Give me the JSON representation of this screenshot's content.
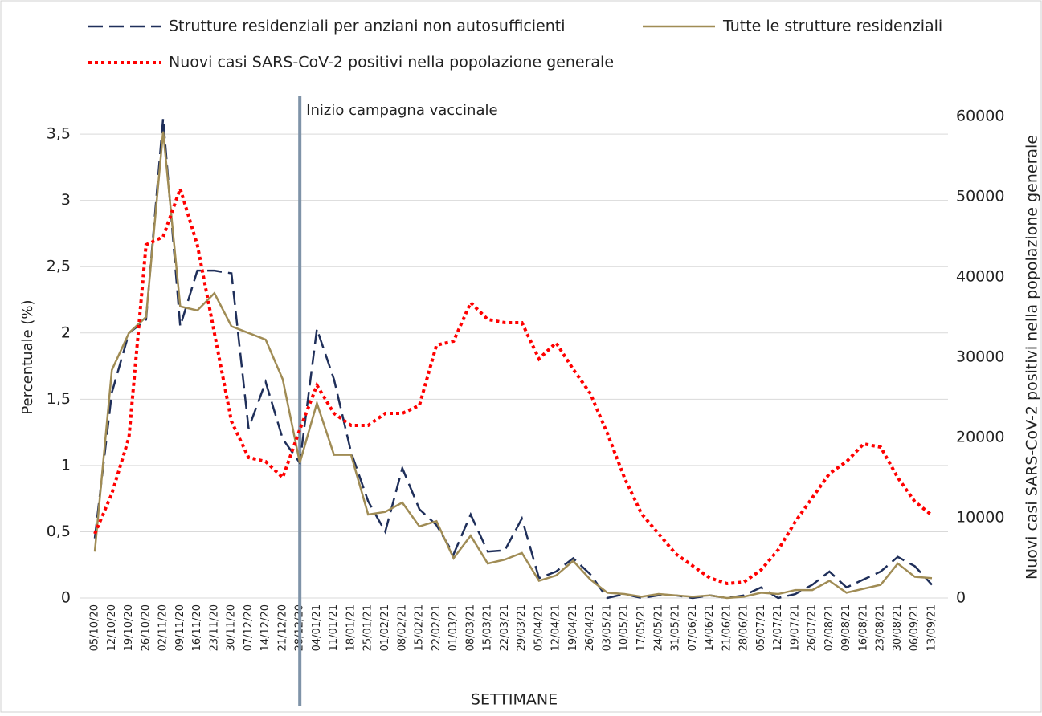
{
  "chart_data": {
    "type": "line",
    "x_label": "SETTIMANE",
    "y_label": "Percentuale (%)",
    "y2_label": "Nuovi casi SARS-CoV-2 positivi nella popolazione generale",
    "annotation": {
      "text": "Inizio campagna vaccinale",
      "category_index": 12
    },
    "categories": [
      "05/10/20",
      "12/10/20",
      "19/10/20",
      "26/10/20",
      "02/11/20",
      "09/11/20",
      "16/11/20",
      "23/11/20",
      "30/11/20",
      "07/12/20",
      "14/12/20",
      "21/12/20",
      "28/12/20",
      "04/01/21",
      "11/01/21",
      "18/01/21",
      "25/01/21",
      "01/02/21",
      "08/02/21",
      "15/02/21",
      "22/02/21",
      "01/03/21",
      "08/03/21",
      "15/03/21",
      "22/03/21",
      "29/03/21",
      "05/04/21",
      "12/04/21",
      "19/04/21",
      "26/04/21",
      "03/05/21",
      "10/05/21",
      "17/05/21",
      "24/05/21",
      "31/05/21",
      "07/06/21",
      "14/06/21",
      "21/06/21",
      "28/06/21",
      "05/07/21",
      "12/07/21",
      "19/07/21",
      "26/07/21",
      "02/08/21",
      "09/08/21",
      "16/08/21",
      "23/08/21",
      "30/08/21",
      "06/09/21",
      "13/09/21"
    ],
    "series": [
      {
        "name": "Strutture residenziali per anziani non autosufficienti",
        "color": "#1f2f5a",
        "style": "dashed",
        "axis": "y",
        "values": [
          0.45,
          1.55,
          2.0,
          2.1,
          3.62,
          2.05,
          2.47,
          2.47,
          2.45,
          1.28,
          1.63,
          1.2,
          1.02,
          2.03,
          1.65,
          1.1,
          0.73,
          0.5,
          0.98,
          0.67,
          0.55,
          0.33,
          0.63,
          0.35,
          0.36,
          0.6,
          0.15,
          0.2,
          0.3,
          0.18,
          0.0,
          0.03,
          0.0,
          0.02,
          0.02,
          0.0,
          0.02,
          0.0,
          0.02,
          0.08,
          0.0,
          0.03,
          0.1,
          0.2,
          0.08,
          0.14,
          0.2,
          0.31,
          0.24,
          0.1
        ]
      },
      {
        "name": "Tutte le strutture residenziali",
        "color": "#a08c55",
        "style": "solid",
        "axis": "y",
        "values": [
          0.35,
          1.72,
          2.0,
          2.12,
          3.52,
          2.2,
          2.17,
          2.3,
          2.05,
          2.0,
          1.95,
          1.65,
          1.02,
          1.47,
          1.08,
          1.08,
          0.63,
          0.65,
          0.72,
          0.54,
          0.58,
          0.3,
          0.47,
          0.26,
          0.29,
          0.34,
          0.13,
          0.17,
          0.28,
          0.14,
          0.04,
          0.03,
          0.01,
          0.03,
          0.02,
          0.01,
          0.02,
          0.0,
          0.01,
          0.04,
          0.03,
          0.06,
          0.06,
          0.13,
          0.04,
          0.07,
          0.1,
          0.26,
          0.16,
          0.15
        ]
      },
      {
        "name": "Nuovi casi SARS-CoV-2 positivi nella popolazione generale",
        "color": "#ff0000",
        "style": "dotted",
        "axis": "y2",
        "values": [
          8000,
          13000,
          20000,
          44000,
          45000,
          51000,
          44000,
          33000,
          22000,
          17500,
          17000,
          15000,
          21000,
          26500,
          23000,
          21500,
          21500,
          23000,
          23000,
          24000,
          31500,
          32000,
          36800,
          34700,
          34300,
          34300,
          29800,
          31800,
          28500,
          25500,
          20500,
          15000,
          10500,
          8000,
          5500,
          4000,
          2500,
          1800,
          2000,
          3500,
          6000,
          9500,
          12500,
          15500,
          17000,
          19200,
          18800,
          15000,
          12000,
          10300
        ]
      }
    ],
    "ylim": [
      0,
      3.634
    ],
    "yticks": [
      0,
      {
        "value": 0.5,
        "label": "0,5"
      },
      1,
      {
        "value": 1.5,
        "label": "1,5"
      },
      2,
      {
        "value": 2.5,
        "label": "2,5"
      },
      3,
      {
        "value": 3.5,
        "label": "3,5"
      }
    ],
    "y2lim": [
      0,
      60000
    ],
    "y2ticks": [
      0,
      10000,
      20000,
      30000,
      40000,
      50000,
      60000
    ],
    "grid": true
  }
}
